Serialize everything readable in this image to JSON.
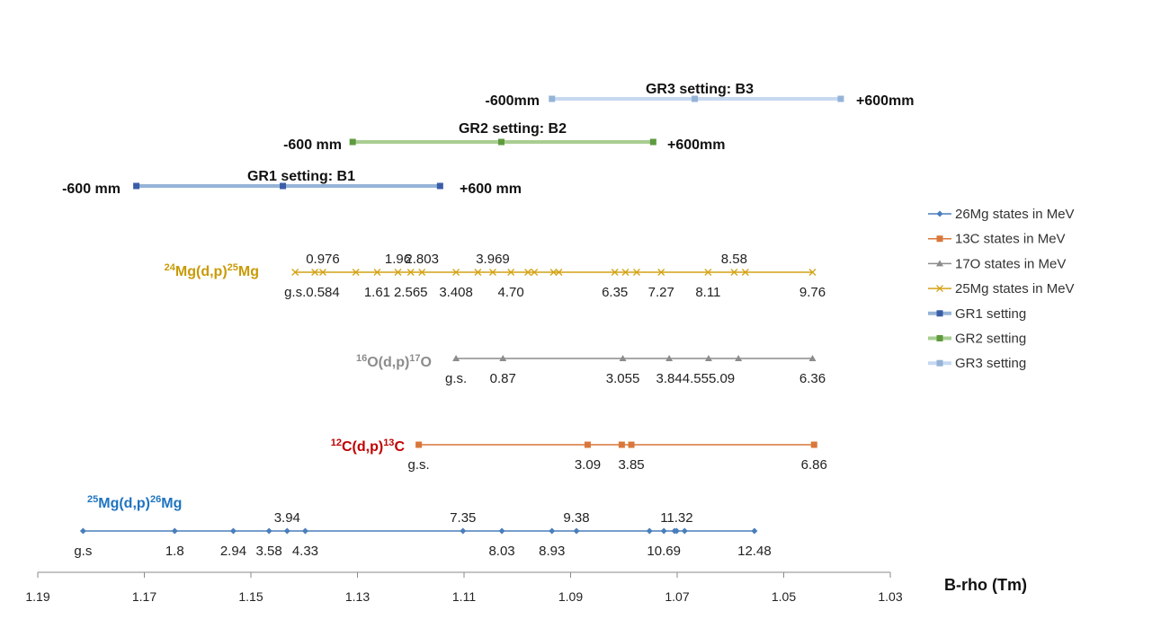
{
  "chart_data": {
    "type": "scatter",
    "xlabel": "B-rho (Tm)",
    "xlim": [
      1.19,
      1.03
    ],
    "x_reversed": true,
    "x_ticks": [
      "1.19",
      "1.17",
      "1.15",
      "1.13",
      "1.11",
      "1.09",
      "1.07",
      "1.05",
      "1.03"
    ],
    "y_gridlines": false,
    "legend_position": "right",
    "series": [
      {
        "name": "26Mg states in MeV",
        "reaction_label": {
          "pre_sup": "25",
          "a": "Mg(d,p)",
          "sup": "26",
          "b": "Mg"
        },
        "color": "#4a7ebb",
        "marker": "diamond",
        "x": [
          1.1815,
          1.1643,
          1.1533,
          1.1466,
          1.1432,
          1.1398,
          1.1102,
          1.1029,
          1.0935,
          1.0889,
          1.0752,
          1.0725,
          1.0705,
          1.0701,
          1.0686,
          1.0555
        ],
        "label_points": [
          {
            "x": 1.1815,
            "text": "g.s",
            "pos": "below"
          },
          {
            "x": 1.1643,
            "text": "1.8",
            "pos": "below"
          },
          {
            "x": 1.1533,
            "text": "2.94",
            "pos": "below"
          },
          {
            "x": 1.1466,
            "text": "3.58",
            "pos": "below"
          },
          {
            "x": 1.1432,
            "text": "3.94",
            "pos": "above"
          },
          {
            "x": 1.1398,
            "text": "4.33",
            "pos": "below"
          },
          {
            "x": 1.1102,
            "text": "7.35",
            "pos": "above"
          },
          {
            "x": 1.1029,
            "text": "8.03",
            "pos": "below"
          },
          {
            "x": 1.0935,
            "text": "8.93",
            "pos": "below"
          },
          {
            "x": 1.0889,
            "text": "9.38",
            "pos": "above"
          },
          {
            "x": 1.0725,
            "text": "10.69",
            "pos": "below"
          },
          {
            "x": 1.0701,
            "text": "11.32",
            "pos": "above"
          },
          {
            "x": 1.0555,
            "text": "12.48",
            "pos": "below"
          }
        ]
      },
      {
        "name": "13C states in MeV",
        "reaction_label": {
          "pre_sup": "12",
          "a": "C(d,p)",
          "sup": "13",
          "b": "C"
        },
        "color": "#d9773a",
        "marker": "square",
        "x": [
          1.1185,
          1.0868,
          1.0804,
          1.0786,
          1.0443
        ],
        "label_points": [
          {
            "x": 1.1185,
            "text": "g.s.",
            "pos": "below"
          },
          {
            "x": 1.0868,
            "text": "3.09",
            "pos": "below"
          },
          {
            "x": 1.0786,
            "text": "3.85",
            "pos": "below"
          },
          {
            "x": 1.0443,
            "text": "6.86",
            "pos": "below"
          }
        ]
      },
      {
        "name": "17O states in MeV",
        "reaction_label": {
          "pre_sup": "16",
          "a": "O(d,p)",
          "sup": "17",
          "b": "O"
        },
        "color": "#8c8c8c",
        "marker": "triangle",
        "x": [
          1.1115,
          1.1027,
          1.0802,
          1.0715,
          1.0641,
          1.0585,
          1.0446
        ],
        "label_points": [
          {
            "x": 1.1115,
            "text": "g.s.",
            "pos": "below"
          },
          {
            "x": 1.1027,
            "text": "0.87",
            "pos": "below"
          },
          {
            "x": 1.0802,
            "text": "3.055",
            "pos": "below"
          },
          {
            "x": 1.0715,
            "text": "3.84",
            "pos": "below"
          },
          {
            "x": 1.0641,
            "text": "4.555.09",
            "pos": "below"
          },
          {
            "x": 1.0446,
            "text": "6.36",
            "pos": "below"
          }
        ]
      },
      {
        "name": "25Mg states in MeV",
        "reaction_label": {
          "pre_sup": "24",
          "a": "Mg(d,p)",
          "sup": "25",
          "b": "Mg"
        },
        "color": "#d4a215",
        "marker": "x",
        "x": [
          1.1417,
          1.138,
          1.1365,
          1.1303,
          1.1263,
          1.1224,
          1.12,
          1.1179,
          1.1115,
          1.1074,
          1.1046,
          1.1012,
          1.098,
          1.0968,
          1.0932,
          1.0922,
          1.0817,
          1.0797,
          1.0776,
          1.073,
          1.0642,
          1.0593,
          1.0572,
          1.0446
        ],
        "label_points": [
          {
            "x": 1.1417,
            "text": "g.s.",
            "pos": "below"
          },
          {
            "x": 1.1365,
            "text": "0.584",
            "pos": "below"
          },
          {
            "x": 1.1365,
            "text": "0.976",
            "pos": "above"
          },
          {
            "x": 1.1263,
            "text": "1.61",
            "pos": "below"
          },
          {
            "x": 1.1224,
            "text": "1.96",
            "pos": "above"
          },
          {
            "x": 1.12,
            "text": "2.565",
            "pos": "below"
          },
          {
            "x": 1.1179,
            "text": "2.803",
            "pos": "above"
          },
          {
            "x": 1.1115,
            "text": "3.408",
            "pos": "below"
          },
          {
            "x": 1.1046,
            "text": "3.969",
            "pos": "above"
          },
          {
            "x": 1.1012,
            "text": "4.70",
            "pos": "below"
          },
          {
            "x": 1.0817,
            "text": "6.35",
            "pos": "below"
          },
          {
            "x": 1.073,
            "text": "7.27",
            "pos": "below"
          },
          {
            "x": 1.0642,
            "text": "8.11",
            "pos": "below"
          },
          {
            "x": 1.0593,
            "text": "8.58",
            "pos": "above"
          },
          {
            "x": 1.0446,
            "text": "9.76",
            "pos": "below"
          }
        ]
      },
      {
        "name": "GR1 setting",
        "color": "#3a5ea8",
        "line_color": "#95b3d7",
        "marker": "square",
        "x": [
          1.1715,
          1.144,
          1.1145
        ],
        "title": "GR1 setting: B1",
        "left_label": "-600 mm",
        "right_label": "+600 mm"
      },
      {
        "name": "GR2 setting",
        "color": "#5e9b3e",
        "line_color": "#a9cd92",
        "marker": "square",
        "x": [
          1.1309,
          1.103,
          1.0745
        ],
        "title": "GR2 setting: B2",
        "left_label": "-600 mm",
        "right_label": "+600mm"
      },
      {
        "name": "GR3 setting",
        "color": "#95b3d7",
        "line_color": "#c6d9f1",
        "marker": "square",
        "x": [
          1.0935,
          1.0667,
          1.0393
        ],
        "title": "GR3 setting: B3",
        "left_label": "-600mm",
        "right_label": "+600mm"
      }
    ]
  }
}
